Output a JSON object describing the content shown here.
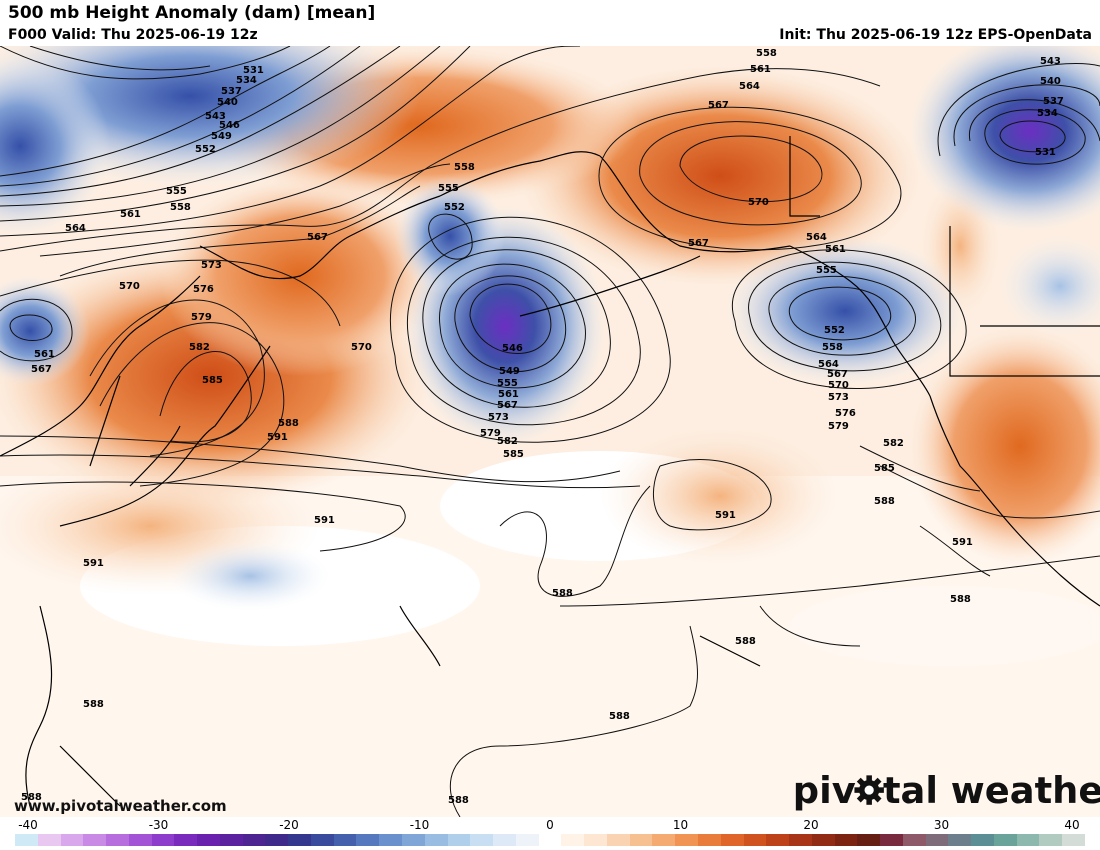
{
  "header": {
    "title": "500 mb Height Anomaly (dam) [mean]",
    "valid": "F000 Valid: Thu 2025-06-19 12z",
    "init": "Init: Thu 2025-06-19 12z EPS-OpenData"
  },
  "watermark": {
    "url": "www.pivotalweather.com",
    "logo_prefix": "piv",
    "logo_suffix": "tal weather"
  },
  "colorbar": {
    "ticks": [
      "-40",
      "-30",
      "-20",
      "-10",
      "0",
      "10",
      "20",
      "30",
      "40"
    ],
    "colors": [
      "#cfe9f7",
      "#e8c8f0",
      "#d9a8ec",
      "#c98ae6",
      "#b86ddf",
      "#a353d6",
      "#8d3ccb",
      "#7a2bbd",
      "#6a21ad",
      "#5b219f",
      "#4d2492",
      "#3f2a8c",
      "#35368e",
      "#3a4a9c",
      "#4560ad",
      "#5578bf",
      "#6a90cd",
      "#80a6d8",
      "#98bce2",
      "#b0cfeb",
      "#c8dff3",
      "#dde9f7",
      "#eef3fa",
      "#ffffff",
      "#fff3e8",
      "#fde6d2",
      "#fad4b2",
      "#f7c090",
      "#f4aa70",
      "#f09353",
      "#ea7c3b",
      "#df652a",
      "#d0521e",
      "#bd421a",
      "#a83517",
      "#922b14",
      "#7c2312",
      "#671f14",
      "#7a2a3e",
      "#8e5a6a",
      "#7e6c7a",
      "#6d7f8c",
      "#5c8f95",
      "#6aa39a",
      "#8cb8ad",
      "#b1cbc1",
      "#d3dcd6"
    ]
  },
  "contour_labels": [
    {
      "text": "531"
    },
    {
      "text": "534"
    },
    {
      "text": "537"
    },
    {
      "text": "540"
    },
    {
      "text": "543"
    },
    {
      "text": "546"
    },
    {
      "text": "549"
    },
    {
      "text": "552"
    },
    {
      "text": "555"
    },
    {
      "text": "558"
    },
    {
      "text": "561"
    },
    {
      "text": "564"
    },
    {
      "text": "567"
    },
    {
      "text": "570"
    },
    {
      "text": "573"
    },
    {
      "text": "576"
    },
    {
      "text": "579"
    },
    {
      "text": "582"
    },
    {
      "text": "585"
    },
    {
      "text": "588"
    },
    {
      "text": "591"
    },
    {
      "text": "561"
    },
    {
      "text": "567"
    },
    {
      "text": "570"
    },
    {
      "text": "558"
    },
    {
      "text": "555"
    },
    {
      "text": "552"
    },
    {
      "text": "546"
    },
    {
      "text": "549"
    },
    {
      "text": "555"
    },
    {
      "text": "561"
    },
    {
      "text": "567"
    },
    {
      "text": "573"
    },
    {
      "text": "579"
    },
    {
      "text": "582"
    },
    {
      "text": "585"
    },
    {
      "text": "558"
    },
    {
      "text": "561"
    },
    {
      "text": "564"
    },
    {
      "text": "567"
    },
    {
      "text": "570"
    },
    {
      "text": "567"
    },
    {
      "text": "564"
    },
    {
      "text": "561"
    },
    {
      "text": "555"
    },
    {
      "text": "552"
    },
    {
      "text": "558"
    },
    {
      "text": "564"
    },
    {
      "text": "567"
    },
    {
      "text": "570"
    },
    {
      "text": "573"
    },
    {
      "text": "576"
    },
    {
      "text": "579"
    },
    {
      "text": "582"
    },
    {
      "text": "585"
    },
    {
      "text": "588"
    },
    {
      "text": "543"
    },
    {
      "text": "540"
    },
    {
      "text": "537"
    },
    {
      "text": "534"
    },
    {
      "text": "531"
    },
    {
      "text": "591"
    },
    {
      "text": "591"
    },
    {
      "text": "591"
    },
    {
      "text": "588"
    },
    {
      "text": "588"
    },
    {
      "text": "588"
    },
    {
      "text": "588"
    },
    {
      "text": "588"
    },
    {
      "text": "588"
    },
    {
      "text": "591"
    },
    {
      "text": "588"
    }
  ]
}
